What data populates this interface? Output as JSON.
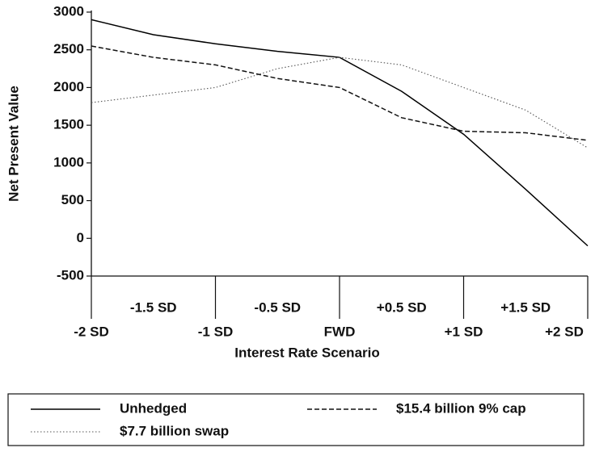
{
  "chart_data": {
    "type": "line",
    "x_label": "Interest Rate Scenario",
    "y_label": "Net Present Value",
    "categories": [
      "-2 SD",
      "-1.5 SD",
      "-1 SD",
      "-0.5 SD",
      "FWD",
      "+0.5 SD",
      "+1 SD",
      "+1.5 SD",
      "+2 SD"
    ],
    "series": [
      {
        "name": "Unhedged",
        "color": "#000000",
        "dash": "solid",
        "values": [
          2900,
          2700,
          2580,
          2480,
          2400,
          1950,
          1380,
          650,
          -100
        ]
      },
      {
        "name": "$15.4 billion 9% cap",
        "color": "#111111",
        "dash": "dashed",
        "values": [
          2550,
          2400,
          2300,
          2120,
          2000,
          1600,
          1420,
          1400,
          1300
        ]
      },
      {
        "name": "$7.7 billion swap",
        "color": "#555555",
        "dash": "dotted",
        "values": [
          1800,
          1900,
          2000,
          2250,
          2400,
          2300,
          2000,
          1700,
          1200
        ]
      }
    ],
    "ylim": [
      -500,
      3000
    ],
    "yticks": [
      -500,
      0,
      500,
      1000,
      1500,
      2000,
      2500,
      3000
    ],
    "grid": false,
    "legend": "bottom"
  }
}
